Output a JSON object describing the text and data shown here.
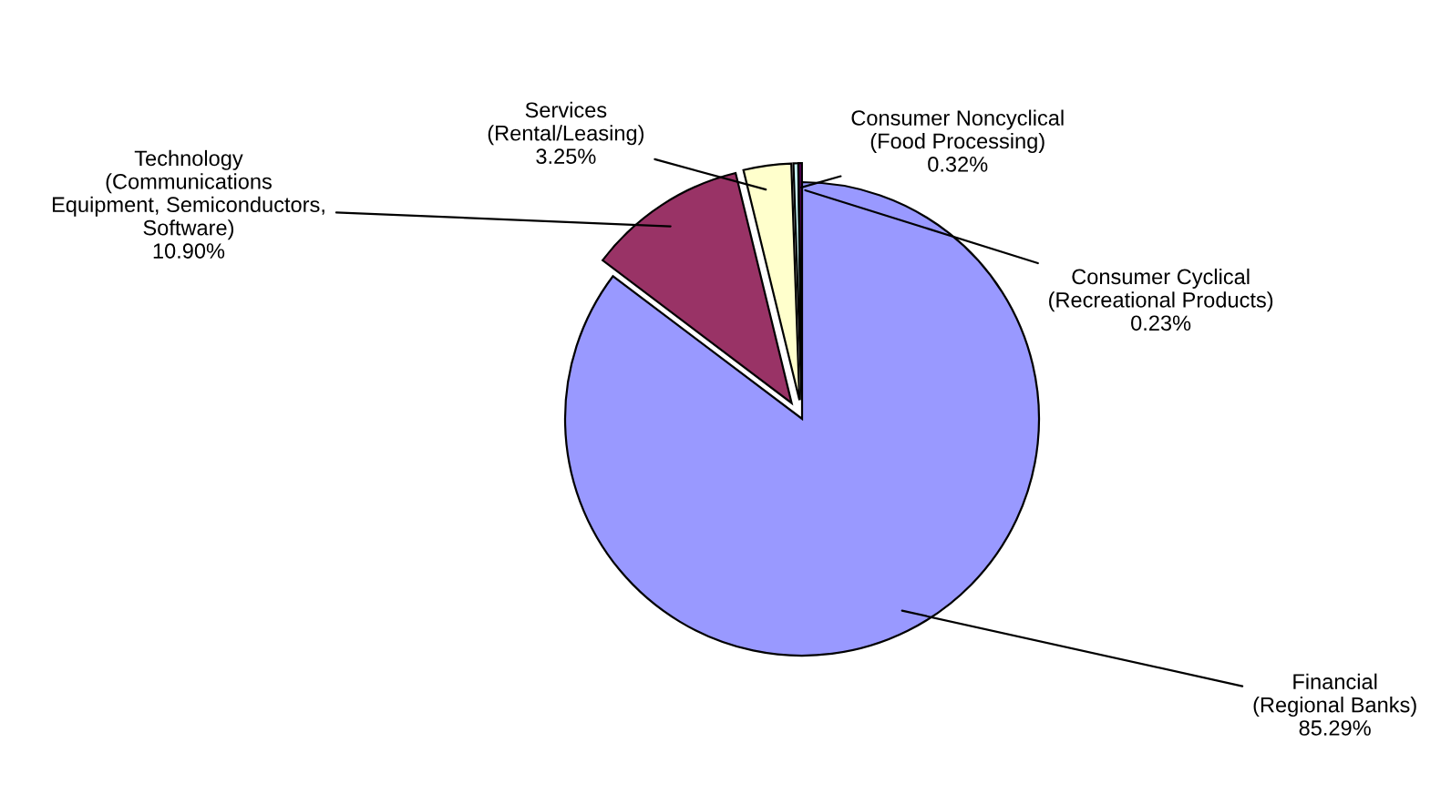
{
  "chart_data": {
    "type": "pie",
    "categories": [
      "Financial\n(Regional Banks)",
      "Technology\n(Communications\nEquipment, Semiconductors,\nSoftware)",
      "Services\n(Rental/Leasing)",
      "Consumer Noncyclical\n(Food Processing)",
      "Consumer Cyclical\n(Recreational Products)"
    ],
    "values": [
      85.29,
      10.9,
      3.25,
      0.32,
      0.23
    ],
    "value_labels": [
      "85.29%",
      "10.90%",
      "3.25%",
      "0.32%",
      "0.23%"
    ],
    "colors": [
      "#9999ff",
      "#993366",
      "#ffffcc",
      "#ccffff",
      "#660066"
    ],
    "legend": false
  }
}
